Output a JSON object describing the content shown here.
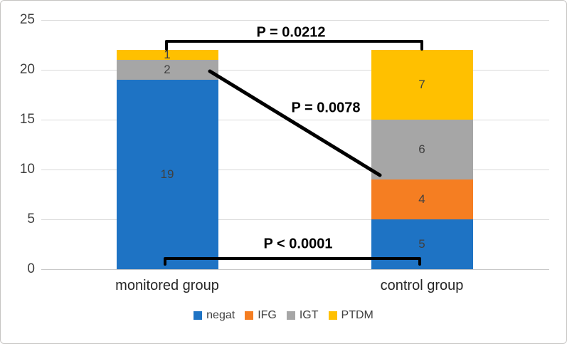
{
  "chart_data": {
    "type": "bar",
    "stacked": true,
    "title": "",
    "xlabel": "",
    "ylabel": "",
    "categories": [
      "monitored group",
      "control group"
    ],
    "series": [
      {
        "name": "negat",
        "color": "#1E73C4",
        "values": [
          19,
          5
        ]
      },
      {
        "name": "IFG",
        "color": "#F57E22",
        "values": [
          0,
          4
        ]
      },
      {
        "name": "IGT",
        "color": "#A6A6A6",
        "values": [
          2,
          6
        ]
      },
      {
        "name": "PTDM",
        "color": "#FFC000",
        "values": [
          1,
          7
        ]
      }
    ],
    "ylim": [
      0,
      25
    ],
    "yticks": [
      0,
      5,
      10,
      15,
      20,
      25
    ],
    "grid": true,
    "legend_position": "bottom",
    "value_labels_shown": true,
    "annotations": [
      {
        "type": "bracket",
        "label": "P = 0.0212",
        "x1": 233,
        "x2": 592,
        "y": 57,
        "tick": 11,
        "label_x": 408,
        "label_y": 45
      },
      {
        "type": "line",
        "label": "P = 0.0078",
        "x1": 294,
        "y1": 99,
        "x2": 533,
        "y2": 245,
        "label_x": 457,
        "label_y": 151
      },
      {
        "type": "bracket",
        "label": "P < 0.0001",
        "x1": 231,
        "x2": 589,
        "y": 362,
        "tick": 8,
        "label_x": 418,
        "label_y": 342
      }
    ],
    "colors": {
      "gridline": "#D9D9D9",
      "baseline": "#C8C8C8",
      "axis_text": "#404040",
      "value_label": "#404040",
      "category_label": "#262626",
      "annotation": "#000000"
    }
  }
}
